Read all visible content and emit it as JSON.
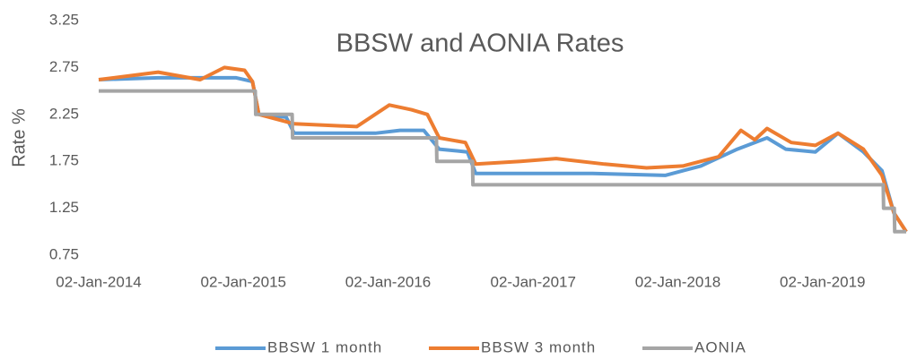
{
  "chart_data": {
    "type": "line",
    "title": "BBSW and AONIA Rates",
    "y_label": "Rate %",
    "xlim": [
      "2014-01-02",
      "2019-08-01"
    ],
    "xticks": [
      {
        "value": "2014-01-02",
        "label": "02-Jan-2014"
      },
      {
        "value": "2015-01-02",
        "label": "02-Jan-2015"
      },
      {
        "value": "2016-01-02",
        "label": "02-Jan-2016"
      },
      {
        "value": "2017-01-02",
        "label": "02-Jan-2017"
      },
      {
        "value": "2018-01-02",
        "label": "02-Jan-2018"
      },
      {
        "value": "2019-01-02",
        "label": "02-Jan-2019"
      }
    ],
    "ylim": [
      0.75,
      3.25
    ],
    "yticks": [
      0.75,
      1.25,
      1.75,
      2.25,
      2.75,
      3.25
    ],
    "grid": false,
    "legend": "bottom",
    "series": [
      {
        "name": "BBSW 1 month",
        "color": "#5b9bd5",
        "x": [
          "2014-01-02",
          "2014-06-01",
          "2014-12-15",
          "2015-01-25",
          "2015-02-10",
          "2015-04-20",
          "2015-05-10",
          "2015-12-01",
          "2016-02-01",
          "2016-04-01",
          "2016-05-10",
          "2016-07-20",
          "2016-08-10",
          "2017-06-01",
          "2017-12-01",
          "2018-03-01",
          "2018-06-01",
          "2018-08-15",
          "2018-10-01",
          "2018-12-15",
          "2019-02-10",
          "2019-04-15",
          "2019-06-01",
          "2019-07-01",
          "2019-08-01"
        ],
        "values": [
          2.62,
          2.64,
          2.64,
          2.6,
          2.25,
          2.22,
          2.05,
          2.05,
          2.08,
          2.08,
          1.88,
          1.85,
          1.62,
          1.62,
          1.6,
          1.7,
          1.88,
          2.0,
          1.88,
          1.85,
          2.05,
          1.85,
          1.65,
          1.2,
          1.0
        ]
      },
      {
        "name": "BBSW 3 month",
        "color": "#ed7d31",
        "x": [
          "2014-01-02",
          "2014-06-01",
          "2014-09-15",
          "2014-11-15",
          "2015-01-05",
          "2015-01-25",
          "2015-02-10",
          "2015-05-10",
          "2015-10-15",
          "2016-01-05",
          "2016-03-01",
          "2016-04-10",
          "2016-05-10",
          "2016-07-15",
          "2016-08-10",
          "2016-12-01",
          "2017-03-01",
          "2017-07-01",
          "2017-10-15",
          "2018-01-15",
          "2018-04-15",
          "2018-06-10",
          "2018-07-15",
          "2018-08-15",
          "2018-10-15",
          "2018-12-15",
          "2019-02-10",
          "2019-04-15",
          "2019-06-01",
          "2019-07-01",
          "2019-08-01"
        ],
        "values": [
          2.62,
          2.7,
          2.62,
          2.75,
          2.72,
          2.6,
          2.25,
          2.15,
          2.12,
          2.35,
          2.3,
          2.25,
          2.0,
          1.95,
          1.72,
          1.75,
          1.78,
          1.72,
          1.68,
          1.7,
          1.8,
          2.08,
          1.98,
          2.1,
          1.95,
          1.92,
          2.05,
          1.88,
          1.6,
          1.2,
          1.0
        ]
      },
      {
        "name": "AONIA",
        "color": "#a5a5a5",
        "x": [
          "2014-01-02",
          "2015-02-01",
          "2015-02-02",
          "2015-05-05",
          "2015-05-06",
          "2016-05-03",
          "2016-05-04",
          "2016-08-02",
          "2016-08-03",
          "2019-06-04",
          "2019-06-05",
          "2019-07-02",
          "2019-07-03",
          "2019-08-01"
        ],
        "values": [
          2.5,
          2.5,
          2.25,
          2.25,
          2.0,
          2.0,
          1.75,
          1.75,
          1.5,
          1.5,
          1.25,
          1.25,
          1.0,
          1.0
        ]
      }
    ]
  }
}
